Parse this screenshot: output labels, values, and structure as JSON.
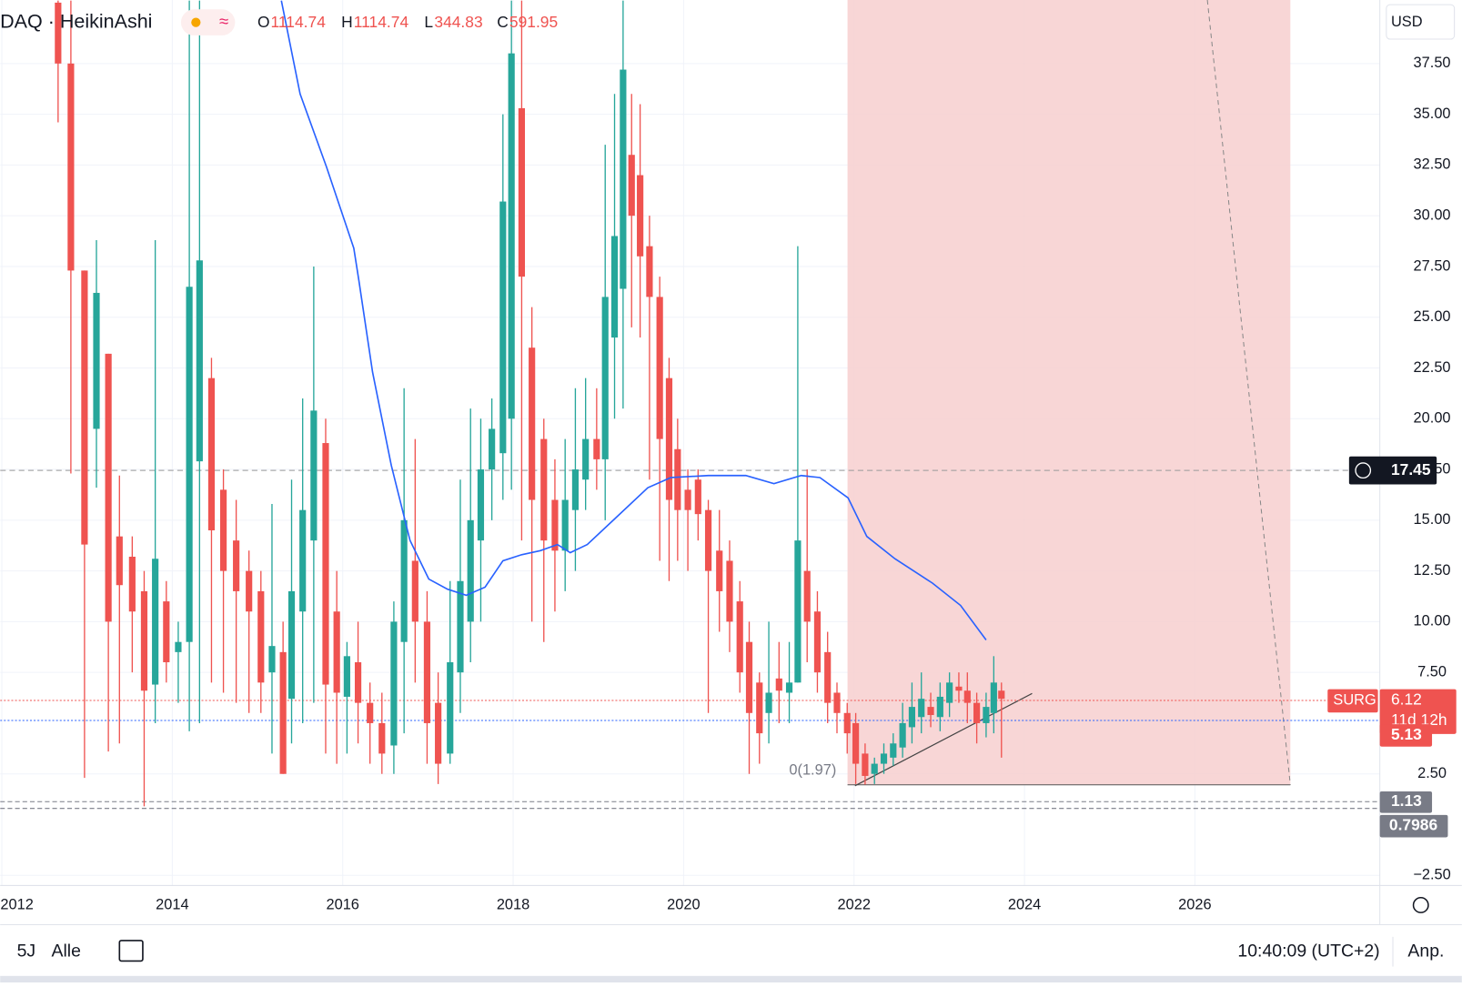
{
  "header": {
    "symbol": "DAQ · HeikinAshi",
    "ohlc": [
      {
        "label": "O",
        "value": 1114.74
      },
      {
        "label": "H",
        "value": 1114.74
      },
      {
        "label": "L",
        "value": 344.83
      },
      {
        "label": "C",
        "value": 591.95
      }
    ]
  },
  "currency": "USD",
  "toolbar": {
    "ranges": [
      "5J",
      "Alle"
    ],
    "time": "10:40:09 (UTC+2)",
    "scale": "Anp."
  },
  "chart_data": {
    "type": "candlestick",
    "up_color": "#26a69a",
    "down_color": "#ef5350",
    "xlim": [
      2011.98,
      2028.17
    ],
    "xticks": [
      2012,
      2014,
      2016,
      2018,
      2020,
      2022,
      2024,
      2026
    ],
    "ylim": [
      -3.0,
      40.63
    ],
    "yticks": [
      {
        "value": 37.5,
        "label": "37.50"
      },
      {
        "value": 35,
        "label": "35.00"
      },
      {
        "value": 32.5,
        "label": "32.50"
      },
      {
        "value": 30,
        "label": "30.00"
      },
      {
        "value": 27.5,
        "label": "27.50"
      },
      {
        "value": 25,
        "label": "25.00"
      },
      {
        "value": 22.5,
        "label": "22.50"
      },
      {
        "value": 20,
        "label": "20.00"
      },
      {
        "value": 17.5,
        "label": "17.50"
      },
      {
        "value": 15,
        "label": "15.00"
      },
      {
        "value": 12.5,
        "label": "12.50"
      },
      {
        "value": 10,
        "label": "10.00"
      },
      {
        "value": 7.5,
        "label": "7.50"
      },
      {
        "value": 2.5,
        "label": "2.50"
      },
      {
        "value": -2.5,
        "label": "−2.50"
      }
    ],
    "candles": [
      [
        2012.66,
        40.5,
        40.6,
        34.6,
        37.5
      ],
      [
        2012.81,
        37.5,
        40.6,
        17.3,
        27.3
      ],
      [
        2012.97,
        27.3,
        27.3,
        2.3,
        13.8
      ],
      [
        2013.11,
        19.5,
        28.8,
        16.6,
        26.2
      ],
      [
        2013.25,
        23.2,
        23.2,
        3.6,
        10.0
      ],
      [
        2013.38,
        14.2,
        17.2,
        4.0,
        11.8
      ],
      [
        2013.53,
        13.2,
        14.2,
        7.5,
        10.5
      ],
      [
        2013.67,
        11.5,
        12.5,
        0.9,
        6.6
      ],
      [
        2013.8,
        6.9,
        28.8,
        5.0,
        13.1
      ],
      [
        2013.93,
        11.0,
        12.0,
        7.0,
        8.0
      ],
      [
        2014.07,
        8.5,
        10.0,
        6.0,
        9.0
      ],
      [
        2014.2,
        9.0,
        40.6,
        4.6,
        26.5
      ],
      [
        2014.32,
        17.9,
        40.6,
        5.0,
        27.8
      ],
      [
        2014.46,
        22.0,
        23.0,
        7.0,
        14.5
      ],
      [
        2014.6,
        16.5,
        17.5,
        6.5,
        12.5
      ],
      [
        2014.75,
        14.0,
        16.0,
        6.0,
        11.5
      ],
      [
        2014.9,
        12.5,
        13.5,
        5.5,
        10.5
      ],
      [
        2015.04,
        11.5,
        12.5,
        5.5,
        7.0
      ],
      [
        2015.17,
        7.5,
        15.8,
        3.5,
        8.8
      ],
      [
        2015.3,
        8.5,
        10.0,
        2.5,
        2.5
      ],
      [
        2015.4,
        6.2,
        17.0,
        4.0,
        11.5
      ],
      [
        2015.53,
        10.5,
        21.0,
        5.0,
        15.5
      ],
      [
        2015.66,
        14.0,
        27.5,
        6.0,
        20.4
      ],
      [
        2015.8,
        18.8,
        20.0,
        3.5,
        6.9
      ],
      [
        2015.93,
        10.5,
        12.5,
        3.0,
        6.5
      ],
      [
        2016.05,
        6.3,
        9.0,
        3.5,
        8.3
      ],
      [
        2016.18,
        8.0,
        10.0,
        4.0,
        6.0
      ],
      [
        2016.32,
        6.0,
        7.0,
        3.0,
        5.0
      ],
      [
        2016.46,
        5.0,
        6.5,
        2.5,
        3.5
      ],
      [
        2016.6,
        3.9,
        11.0,
        2.5,
        10.0
      ],
      [
        2016.72,
        9.0,
        21.5,
        4.5,
        15.0
      ],
      [
        2016.85,
        13.0,
        19.0,
        7.0,
        10.0
      ],
      [
        2016.99,
        10.0,
        11.5,
        3.0,
        5.0
      ],
      [
        2017.12,
        6.0,
        7.5,
        2.0,
        3.0
      ],
      [
        2017.26,
        3.5,
        12.0,
        3.0,
        8.0
      ],
      [
        2017.38,
        7.5,
        17.0,
        5.5,
        12.0
      ],
      [
        2017.5,
        10.0,
        20.5,
        8.0,
        15.0
      ],
      [
        2017.62,
        14.0,
        20.0,
        10.0,
        17.5
      ],
      [
        2017.75,
        17.5,
        21.0,
        15.0,
        19.5
      ],
      [
        2017.88,
        18.3,
        35.0,
        16.0,
        30.7
      ],
      [
        2017.98,
        20.0,
        40.6,
        16.5,
        38.0
      ],
      [
        2018.1,
        35.3,
        40.6,
        14.0,
        27.0
      ],
      [
        2018.22,
        23.5,
        25.5,
        10.0,
        16.0
      ],
      [
        2018.36,
        19.0,
        20.0,
        9.0,
        14.0
      ],
      [
        2018.49,
        16.0,
        18.0,
        10.5,
        13.5
      ],
      [
        2018.61,
        13.5,
        19.0,
        11.5,
        16.0
      ],
      [
        2018.73,
        15.5,
        21.5,
        12.5,
        17.5
      ],
      [
        2018.85,
        17.0,
        22.0,
        15.5,
        19.0
      ],
      [
        2018.98,
        19.0,
        21.5,
        16.5,
        18.0
      ],
      [
        2019.08,
        18.0,
        33.5,
        15.0,
        26.0
      ],
      [
        2019.19,
        24.0,
        36.0,
        20.0,
        29.0
      ],
      [
        2019.29,
        26.4,
        40.6,
        20.5,
        37.2
      ],
      [
        2019.39,
        33.0,
        36.0,
        24.5,
        30.0
      ],
      [
        2019.49,
        32.0,
        35.5,
        24.0,
        28.0
      ],
      [
        2019.6,
        28.5,
        30.0,
        17.0,
        26.0
      ],
      [
        2019.72,
        26.0,
        27.0,
        13.0,
        19.0
      ],
      [
        2019.83,
        22.0,
        23.0,
        12.0,
        16.0
      ],
      [
        2019.93,
        18.5,
        20.0,
        13.0,
        15.5
      ],
      [
        2020.05,
        16.5,
        17.5,
        12.5,
        15.5
      ],
      [
        2020.17,
        17.0,
        17.5,
        14.0,
        15.3
      ],
      [
        2020.29,
        15.5,
        16.0,
        5.5,
        12.5
      ],
      [
        2020.42,
        13.5,
        15.5,
        9.5,
        11.5
      ],
      [
        2020.54,
        13.0,
        14.0,
        8.5,
        10.0
      ],
      [
        2020.66,
        11.0,
        12.0,
        6.5,
        7.5
      ],
      [
        2020.77,
        9.0,
        10.0,
        2.5,
        5.5
      ],
      [
        2020.89,
        7.0,
        7.5,
        3.0,
        4.5
      ],
      [
        2021.0,
        5.5,
        10.0,
        4.0,
        6.5
      ],
      [
        2021.12,
        7.2,
        9.0,
        5.0,
        6.6
      ],
      [
        2021.24,
        6.5,
        9.0,
        5.0,
        7.0
      ],
      [
        2021.34,
        7.0,
        28.5,
        7.0,
        14.0
      ],
      [
        2021.45,
        12.5,
        17.5,
        8.0,
        10.0
      ],
      [
        2021.57,
        10.5,
        11.5,
        6.5,
        7.5
      ],
      [
        2021.69,
        8.5,
        9.5,
        5.0,
        6.0
      ],
      [
        2021.8,
        6.5,
        7.0,
        4.5,
        5.5
      ],
      [
        2021.92,
        5.5,
        6.0,
        3.5,
        4.5
      ],
      [
        2022.02,
        5.0,
        5.5,
        2.0,
        3.0
      ],
      [
        2022.13,
        3.5,
        4.0,
        1.97,
        2.4
      ],
      [
        2022.24,
        2.5,
        3.3,
        2.0,
        3.0
      ],
      [
        2022.35,
        3.0,
        4.0,
        2.5,
        3.5
      ],
      [
        2022.46,
        3.3,
        4.5,
        2.9,
        4.0
      ],
      [
        2022.57,
        3.8,
        6.0,
        3.3,
        5.0
      ],
      [
        2022.68,
        4.8,
        7.0,
        4.0,
        5.8
      ],
      [
        2022.79,
        5.3,
        7.5,
        4.5,
        6.2
      ],
      [
        2022.9,
        5.8,
        6.5,
        4.8,
        5.4
      ],
      [
        2023.01,
        5.3,
        7.0,
        4.6,
        6.3
      ],
      [
        2023.12,
        6.0,
        7.5,
        5.3,
        7.0
      ],
      [
        2023.23,
        6.8,
        7.5,
        6.0,
        6.6
      ],
      [
        2023.33,
        6.6,
        7.5,
        5.0,
        6.0
      ],
      [
        2023.44,
        6.0,
        6.5,
        4.0,
        5.0
      ],
      [
        2023.55,
        5.0,
        6.5,
        4.3,
        5.8
      ],
      [
        2023.64,
        5.5,
        8.3,
        4.5,
        7.0
      ],
      [
        2023.73,
        6.6,
        7.0,
        3.3,
        6.2
      ]
    ],
    "ma": {
      "color": "#2962ff",
      "x": [
        2015.28,
        2015.5,
        2015.81,
        2016.13,
        2016.19,
        2016.35,
        2016.57,
        2016.79,
        2017.01,
        2017.23,
        2017.45,
        2017.67,
        2017.88,
        2018.1,
        2018.32,
        2018.52,
        2018.67,
        2018.87,
        2019.2,
        2019.58,
        2019.85,
        2020.29,
        2020.73,
        2021.06,
        2021.38,
        2021.6,
        2021.93,
        2022.15,
        2022.48,
        2022.92,
        2023.25,
        2023.55
      ],
      "values": [
        40.6,
        36.0,
        32.4,
        28.4,
        26.8,
        22.3,
        17.7,
        14.0,
        12.1,
        11.6,
        11.3,
        11.7,
        13.0,
        13.3,
        13.5,
        13.8,
        13.4,
        13.8,
        15.1,
        16.6,
        17.1,
        17.2,
        17.2,
        16.8,
        17.2,
        17.1,
        16.1,
        14.2,
        13.1,
        11.9,
        10.8,
        9.1
      ]
    },
    "price_lines": [
      {
        "value": 17.45,
        "color": "#999999"
      },
      {
        "value": 6.12,
        "color": "#ef5350",
        "tag": "SURG",
        "countdown": "11d 12h"
      },
      {
        "value": 5.13,
        "color": "#ef5350"
      },
      {
        "value": 1.13,
        "color": "#787b86"
      },
      {
        "value": 0.7986,
        "color": "#787b86"
      }
    ],
    "annotation": "0(1.97)"
  }
}
